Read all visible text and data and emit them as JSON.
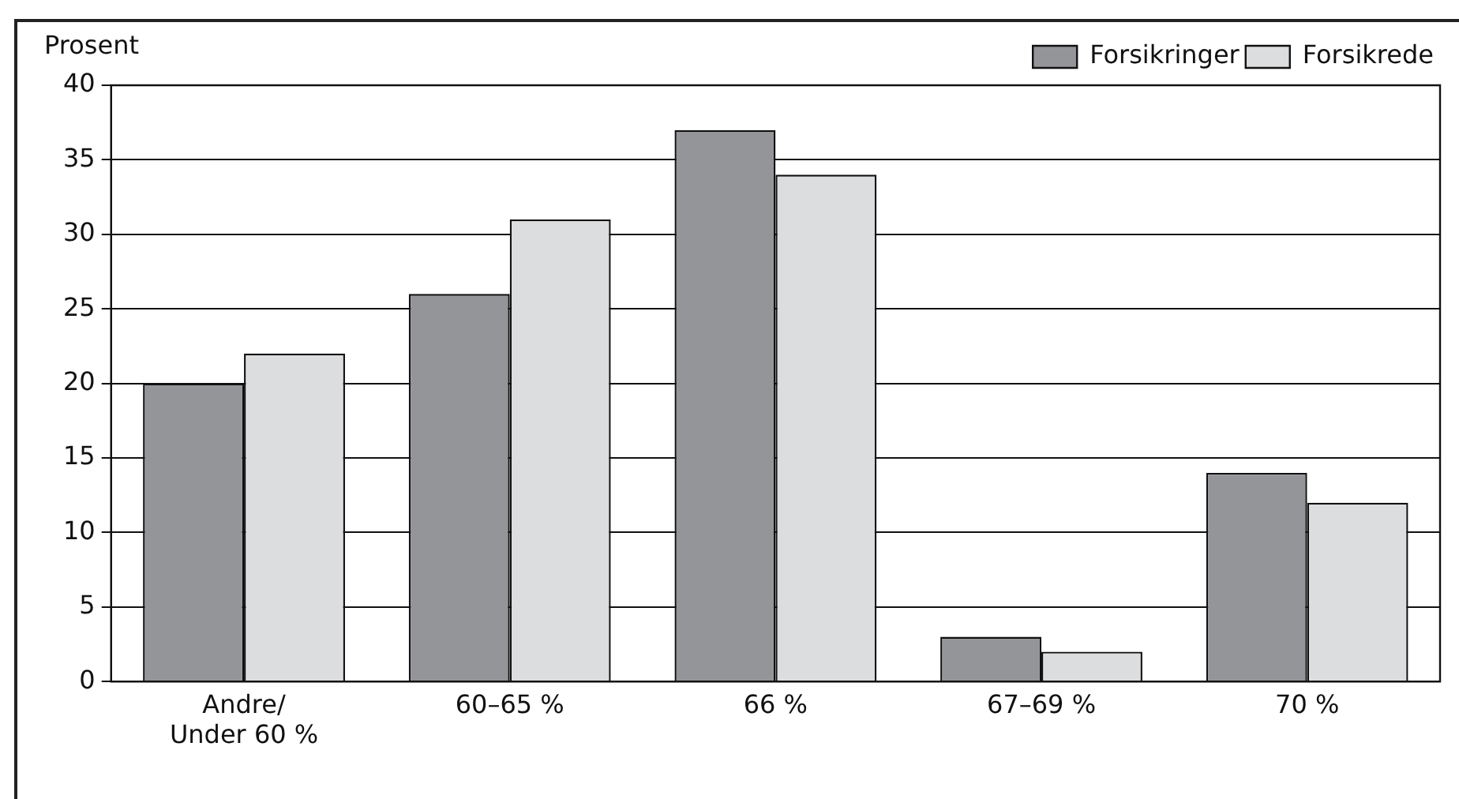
{
  "chart_data": {
    "type": "bar",
    "ylabel": "Prosent",
    "categories": [
      "Andre/\nUnder 60 %",
      "60–65 %",
      "66 %",
      "67–69 %",
      "70 %"
    ],
    "series": [
      {
        "name": "Forsikringer",
        "color": "#939598",
        "values": [
          20,
          26,
          37,
          3,
          14
        ]
      },
      {
        "name": "Forsikrede",
        "color": "#dcdddf",
        "values": [
          22,
          31,
          34,
          2,
          12
        ]
      }
    ],
    "ylim": [
      0,
      40
    ],
    "yticks": [
      0,
      5,
      10,
      15,
      20,
      25,
      30,
      35,
      40
    ],
    "grid": "y",
    "legend": "top right"
  }
}
